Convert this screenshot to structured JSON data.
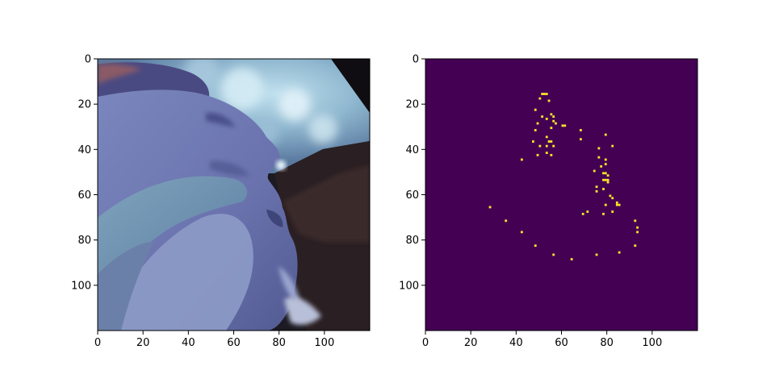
{
  "figure": {
    "panels": [
      {
        "name": "photo-panel",
        "kind": "image",
        "x_ticks": [
          "0",
          "20",
          "40",
          "60",
          "80",
          "100"
        ],
        "y_ticks": [
          "0",
          "20",
          "40",
          "60",
          "80",
          "100"
        ],
        "x_range": [
          0,
          120
        ],
        "y_range": [
          0,
          120
        ]
      },
      {
        "name": "mask-panel",
        "kind": "binary-mask",
        "x_ticks": [
          "0",
          "20",
          "40",
          "60",
          "80",
          "100"
        ],
        "y_ticks": [
          "0",
          "20",
          "40",
          "60",
          "80",
          "100"
        ],
        "x_range": [
          0,
          120
        ],
        "y_range": [
          0,
          120
        ],
        "colors": {
          "background": "#440154",
          "foreground": "#fde725"
        },
        "points": [
          [
            51,
            15
          ],
          [
            52,
            15
          ],
          [
            53,
            15
          ],
          [
            54,
            18
          ],
          [
            50,
            17
          ],
          [
            48,
            22
          ],
          [
            51,
            25
          ],
          [
            53,
            26
          ],
          [
            55,
            24
          ],
          [
            56,
            25
          ],
          [
            56,
            27
          ],
          [
            57,
            28
          ],
          [
            55,
            30
          ],
          [
            49,
            28
          ],
          [
            48,
            31
          ],
          [
            60,
            29
          ],
          [
            61,
            29
          ],
          [
            53,
            34
          ],
          [
            54,
            36
          ],
          [
            55,
            36
          ],
          [
            56,
            38
          ],
          [
            53,
            38
          ],
          [
            50,
            38
          ],
          [
            55,
            42
          ],
          [
            53,
            41
          ],
          [
            47,
            36
          ],
          [
            49,
            42
          ],
          [
            42,
            44
          ],
          [
            68,
            31
          ],
          [
            68,
            35
          ],
          [
            79,
            33
          ],
          [
            82,
            38
          ],
          [
            76,
            39
          ],
          [
            76,
            43
          ],
          [
            79,
            44
          ],
          [
            79,
            46
          ],
          [
            77,
            47
          ],
          [
            74,
            49
          ],
          [
            78,
            50
          ],
          [
            79,
            50
          ],
          [
            80,
            51
          ],
          [
            80,
            53
          ],
          [
            79,
            53
          ],
          [
            78,
            53
          ],
          [
            80,
            54
          ],
          [
            75,
            56
          ],
          [
            78,
            57
          ],
          [
            75,
            58
          ],
          [
            81,
            60
          ],
          [
            82,
            61
          ],
          [
            84,
            63
          ],
          [
            84,
            64
          ],
          [
            85,
            64
          ],
          [
            79,
            64
          ],
          [
            82,
            67
          ],
          [
            78,
            68
          ],
          [
            71,
            67
          ],
          [
            69,
            68
          ],
          [
            28,
            65
          ],
          [
            35,
            71
          ],
          [
            42,
            76
          ],
          [
            48,
            82
          ],
          [
            56,
            86
          ],
          [
            64,
            88
          ],
          [
            75,
            86
          ],
          [
            85,
            85
          ],
          [
            92,
            82
          ],
          [
            92,
            71
          ],
          [
            93,
            74
          ],
          [
            93,
            76
          ]
        ]
      }
    ]
  }
}
